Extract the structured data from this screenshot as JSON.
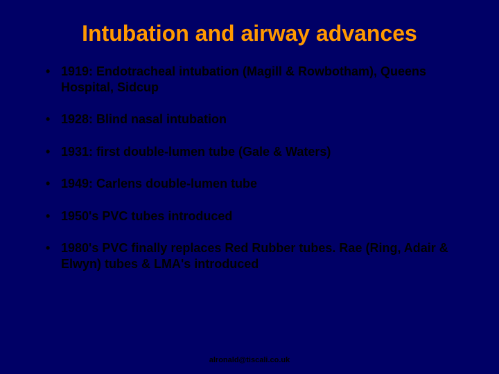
{
  "background_color": "#000066",
  "title_color": "#ff9900",
  "text_color": "#000000",
  "font_family": "Comic Sans MS",
  "title": "Intubation and airway advances",
  "title_fontsize": 32,
  "bullet_fontsize": 18,
  "bullets": [
    "1919: Endotracheal intubation (Magill & Rowbotham), Queens Hospital, Sidcup",
    "1928: Blind nasal intubation",
    "1931: first double-lumen tube (Gale & Waters)",
    "1949: Carlens double-lumen tube",
    "1950's PVC tubes introduced",
    "1980's PVC finally replaces Red Rubber tubes. Rae (Ring, Adair & Elwyn) tubes & LMA's introduced"
  ],
  "footer": "alronald@tiscali.co.uk",
  "footer_fontsize": 11
}
